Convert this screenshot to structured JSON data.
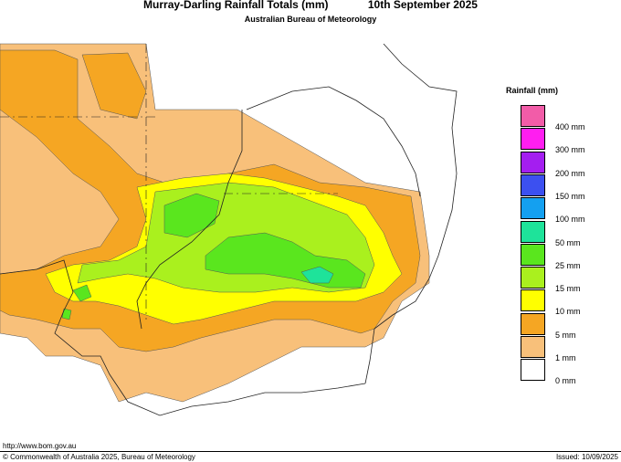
{
  "header": {
    "title": "Murray-Darling Rainfall Totals (mm)",
    "date": "10th September 2025",
    "subtitle": "Australian Bureau of Meteorology"
  },
  "legend": {
    "title": "Rainfall (mm)",
    "items": [
      {
        "label": "400 mm",
        "color": "#f25ca8"
      },
      {
        "label": "300 mm",
        "color": "#ff1ef0"
      },
      {
        "label": "200 mm",
        "color": "#a41ef0"
      },
      {
        "label": "150 mm",
        "color": "#3c50f0"
      },
      {
        "label": "100 mm",
        "color": "#14a0f0"
      },
      {
        "label": "50 mm",
        "color": "#1ee39a"
      },
      {
        "label": "25 mm",
        "color": "#5ae61e"
      },
      {
        "label": "15 mm",
        "color": "#aaf01e"
      },
      {
        "label": "10 mm",
        "color": "#ffff00"
      },
      {
        "label": "5 mm",
        "color": "#f5a623"
      },
      {
        "label": "1 mm",
        "color": "#f8c07a"
      },
      {
        "label": "0 mm",
        "color": "#ffffff"
      }
    ]
  },
  "footer": {
    "url": "http://www.bom.gov.au",
    "copyright": "© Commonwealth of Australia 2025, Bureau of Meteorology",
    "issued": "Issued: 10/09/2025"
  }
}
